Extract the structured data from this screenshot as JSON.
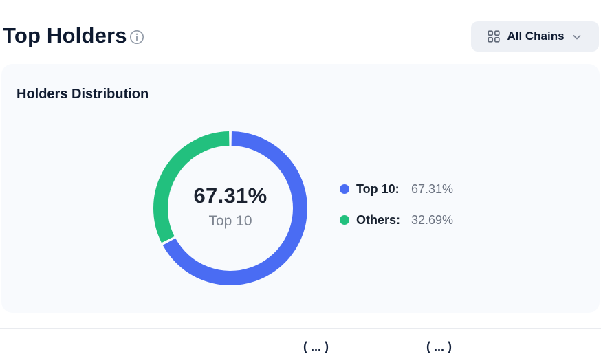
{
  "page": {
    "title": "Top Holders"
  },
  "header": {
    "chains_button": {
      "label": "All Chains"
    }
  },
  "card": {
    "title": "Holders Distribution"
  },
  "chart_data": {
    "type": "pie",
    "title": "Holders Distribution",
    "categories": [
      "Top 10",
      "Others"
    ],
    "values": [
      67.31,
      32.69
    ],
    "colors": [
      "#4a6cf3",
      "#22c07e"
    ],
    "donut": {
      "stroke_width": 21,
      "pad_angle": 2,
      "start_angle": 0,
      "direction": "clockwise"
    },
    "center": {
      "value": "67.31%",
      "label": "Top 10"
    },
    "legend": [
      {
        "label": "Top 10:",
        "value": "67.31%",
        "color": "#4a6cf3"
      },
      {
        "label": "Others:",
        "value": "32.69%",
        "color": "#22c07e"
      }
    ],
    "legend_position": "right"
  },
  "bottom": {
    "clipped_left": "( ... )",
    "clipped_right": "( ... )"
  }
}
